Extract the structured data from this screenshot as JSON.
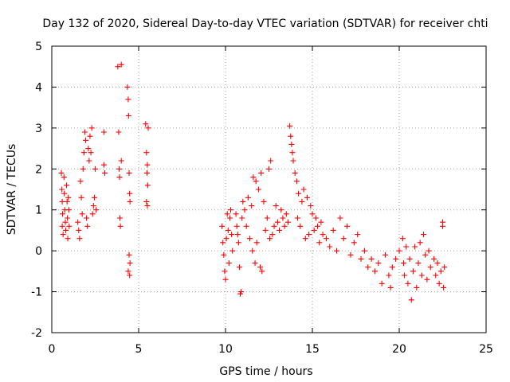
{
  "chart_data": {
    "type": "scatter",
    "title": "Day 132 of 2020, Sidereal Day-to-day VTEC variation (SDTVAR) for receiver chti",
    "xlabel": "GPS time / hours",
    "ylabel": "SDTVAR / TECUs",
    "xlim": [
      0,
      25
    ],
    "ylim": [
      -2,
      5
    ],
    "xticks": [
      "0",
      "5",
      "10",
      "15",
      "20",
      "25"
    ],
    "yticks": [
      "-2",
      "-1",
      "0",
      "1",
      "2",
      "3",
      "4",
      "5"
    ],
    "grid": true,
    "marker": "plus",
    "series_color": "#ff0000",
    "points": [
      [
        0.55,
        1.9
      ],
      [
        0.58,
        1.5
      ],
      [
        0.6,
        1.2
      ],
      [
        0.62,
        0.9
      ],
      [
        0.6,
        0.6
      ],
      [
        0.65,
        0.4
      ],
      [
        0.7,
        1.8
      ],
      [
        0.72,
        1.4
      ],
      [
        0.75,
        1.0
      ],
      [
        0.78,
        0.7
      ],
      [
        0.8,
        0.5
      ],
      [
        0.85,
        1.6
      ],
      [
        0.88,
        1.2
      ],
      [
        0.9,
        0.8
      ],
      [
        0.92,
        0.3
      ],
      [
        0.95,
        1.3
      ],
      [
        0.98,
        1.0
      ],
      [
        1.0,
        0.6
      ],
      [
        1.5,
        0.7
      ],
      [
        1.55,
        0.5
      ],
      [
        1.6,
        0.3
      ],
      [
        1.65,
        1.7
      ],
      [
        1.7,
        1.3
      ],
      [
        1.75,
        0.9
      ],
      [
        1.8,
        2.0
      ],
      [
        1.85,
        2.4
      ],
      [
        1.9,
        2.9
      ],
      [
        1.95,
        2.7
      ],
      [
        2.0,
        0.8
      ],
      [
        2.05,
        0.6
      ],
      [
        2.1,
        2.5
      ],
      [
        2.15,
        2.2
      ],
      [
        2.2,
        2.8
      ],
      [
        2.25,
        2.4
      ],
      [
        2.3,
        3.0
      ],
      [
        2.35,
        0.9
      ],
      [
        2.4,
        1.1
      ],
      [
        2.45,
        1.3
      ],
      [
        2.5,
        2.0
      ],
      [
        2.55,
        1.0
      ],
      [
        3.0,
        2.9
      ],
      [
        3.0,
        2.1
      ],
      [
        3.05,
        1.9
      ],
      [
        3.8,
        4.5
      ],
      [
        3.85,
        2.9
      ],
      [
        3.88,
        2.0
      ],
      [
        3.9,
        1.8
      ],
      [
        3.92,
        0.8
      ],
      [
        3.95,
        0.6
      ],
      [
        4.0,
        2.2
      ],
      [
        4.0,
        4.55
      ],
      [
        4.35,
        4.0
      ],
      [
        4.4,
        3.7
      ],
      [
        4.42,
        3.3
      ],
      [
        4.45,
        1.9
      ],
      [
        4.48,
        1.4
      ],
      [
        4.5,
        1.2
      ],
      [
        4.45,
        -0.1
      ],
      [
        4.5,
        -0.3
      ],
      [
        4.48,
        -0.6
      ],
      [
        4.4,
        -0.5
      ],
      [
        5.4,
        3.1
      ],
      [
        5.45,
        2.4
      ],
      [
        5.5,
        2.1
      ],
      [
        5.48,
        1.9
      ],
      [
        5.52,
        1.6
      ],
      [
        5.45,
        1.2
      ],
      [
        5.5,
        1.1
      ],
      [
        5.55,
        3.0
      ],
      [
        9.8,
        0.6
      ],
      [
        9.85,
        0.2
      ],
      [
        9.9,
        -0.1
      ],
      [
        9.95,
        -0.5
      ],
      [
        10.0,
        -0.7
      ],
      [
        10.05,
        0.3
      ],
      [
        10.1,
        0.9
      ],
      [
        10.15,
        0.5
      ],
      [
        10.2,
        -0.3
      ],
      [
        10.25,
        0.8
      ],
      [
        10.3,
        1.0
      ],
      [
        10.35,
        0.4
      ],
      [
        10.4,
        0.0
      ],
      [
        10.6,
        0.9
      ],
      [
        10.65,
        0.6
      ],
      [
        10.7,
        0.4
      ],
      [
        10.75,
        0.2
      ],
      [
        10.8,
        -0.4
      ],
      [
        10.85,
        -1.05
      ],
      [
        10.9,
        -1.0
      ],
      [
        10.95,
        0.8
      ],
      [
        11.0,
        1.2
      ],
      [
        11.1,
        1.0
      ],
      [
        11.2,
        0.6
      ],
      [
        11.3,
        1.3
      ],
      [
        11.4,
        0.3
      ],
      [
        11.5,
        1.1
      ],
      [
        11.55,
        0.0
      ],
      [
        11.6,
        1.8
      ],
      [
        11.7,
        -0.3
      ],
      [
        11.75,
        1.7
      ],
      [
        11.8,
        0.2
      ],
      [
        11.9,
        1.5
      ],
      [
        12.0,
        -0.4
      ],
      [
        12.05,
        1.9
      ],
      [
        12.1,
        -0.5
      ],
      [
        12.2,
        1.2
      ],
      [
        12.3,
        0.5
      ],
      [
        12.4,
        0.8
      ],
      [
        12.5,
        2.0
      ],
      [
        12.55,
        0.3
      ],
      [
        12.6,
        2.2
      ],
      [
        12.7,
        0.4
      ],
      [
        12.8,
        0.6
      ],
      [
        12.9,
        1.1
      ],
      [
        13.0,
        0.7
      ],
      [
        13.1,
        0.5
      ],
      [
        13.2,
        1.0
      ],
      [
        13.3,
        0.8
      ],
      [
        13.4,
        0.6
      ],
      [
        13.5,
        0.9
      ],
      [
        13.6,
        0.7
      ],
      [
        13.7,
        3.05
      ],
      [
        13.75,
        2.8
      ],
      [
        13.8,
        2.6
      ],
      [
        13.85,
        2.4
      ],
      [
        13.9,
        2.2
      ],
      [
        14.0,
        1.9
      ],
      [
        14.1,
        1.7
      ],
      [
        14.15,
        0.8
      ],
      [
        14.2,
        1.4
      ],
      [
        14.3,
        0.6
      ],
      [
        14.4,
        1.2
      ],
      [
        14.5,
        1.5
      ],
      [
        14.6,
        0.3
      ],
      [
        14.7,
        1.3
      ],
      [
        14.8,
        0.4
      ],
      [
        14.9,
        1.1
      ],
      [
        15.0,
        0.9
      ],
      [
        15.1,
        0.5
      ],
      [
        15.2,
        0.8
      ],
      [
        15.3,
        0.6
      ],
      [
        15.4,
        0.2
      ],
      [
        15.5,
        0.7
      ],
      [
        15.6,
        0.4
      ],
      [
        15.8,
        0.3
      ],
      [
        16.0,
        0.1
      ],
      [
        16.2,
        0.5
      ],
      [
        16.4,
        0.0
      ],
      [
        16.6,
        0.8
      ],
      [
        16.8,
        0.3
      ],
      [
        17.0,
        0.6
      ],
      [
        17.2,
        -0.1
      ],
      [
        17.4,
        0.2
      ],
      [
        17.6,
        0.4
      ],
      [
        17.8,
        -0.2
      ],
      [
        18.0,
        0.0
      ],
      [
        18.2,
        -0.4
      ],
      [
        18.4,
        -0.2
      ],
      [
        18.6,
        -0.5
      ],
      [
        18.8,
        -0.3
      ],
      [
        19.0,
        -0.8
      ],
      [
        19.2,
        -0.1
      ],
      [
        19.4,
        -0.6
      ],
      [
        19.5,
        -0.9
      ],
      [
        19.6,
        -0.4
      ],
      [
        19.8,
        -0.2
      ],
      [
        20.0,
        0.0
      ],
      [
        20.2,
        0.3
      ],
      [
        20.25,
        -0.3
      ],
      [
        20.3,
        -0.6
      ],
      [
        20.4,
        0.1
      ],
      [
        20.5,
        -0.8
      ],
      [
        20.6,
        -0.2
      ],
      [
        20.7,
        -1.2
      ],
      [
        20.8,
        -0.5
      ],
      [
        20.9,
        0.1
      ],
      [
        21.0,
        -0.9
      ],
      [
        21.1,
        -0.3
      ],
      [
        21.2,
        0.2
      ],
      [
        21.3,
        -0.6
      ],
      [
        21.4,
        0.4
      ],
      [
        21.5,
        -0.1
      ],
      [
        21.6,
        -0.7
      ],
      [
        21.7,
        0.0
      ],
      [
        21.8,
        -0.4
      ],
      [
        22.0,
        -0.2
      ],
      [
        22.1,
        -0.6
      ],
      [
        22.2,
        -0.3
      ],
      [
        22.3,
        -0.8
      ],
      [
        22.4,
        -0.5
      ],
      [
        22.5,
        0.7
      ],
      [
        22.5,
        0.6
      ],
      [
        22.55,
        -0.9
      ],
      [
        22.6,
        -0.4
      ]
    ]
  }
}
